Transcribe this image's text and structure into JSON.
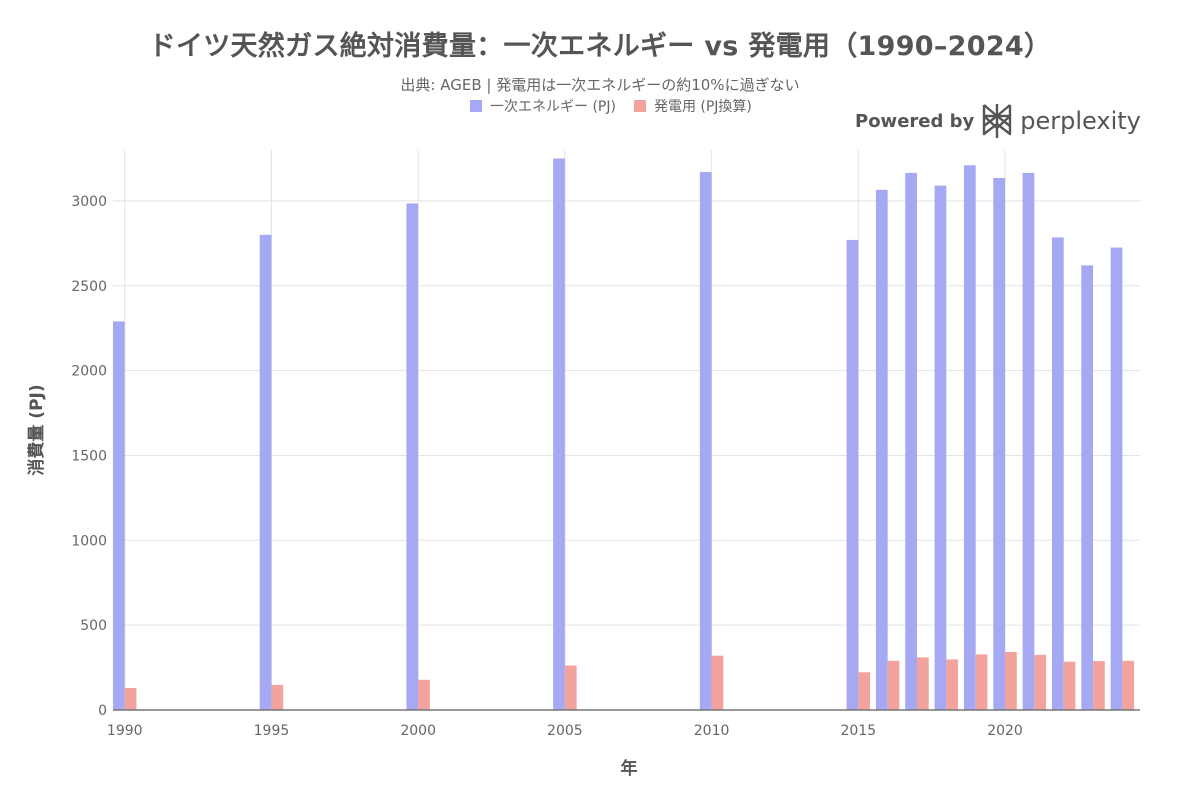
{
  "title": "ドイツ天然ガス絶対消費量：一次エネルギー vs 発電用（1990–2024）",
  "subtitle": "出典: AGEB | 発電用は一次エネルギーの約10%に過ぎない",
  "branding": {
    "label": "Powered by",
    "name": "perplexity"
  },
  "colors": {
    "primary": "#A5A8F2",
    "power": "#F2A39D",
    "grid": "#e3e3e3",
    "axis": "#777777"
  },
  "chart_data": {
    "type": "bar",
    "xlabel": "年",
    "ylabel": "消費量 (PJ)",
    "ylim": [
      0,
      3300
    ],
    "y_ticks": [
      0,
      500,
      1000,
      1500,
      2000,
      2500,
      3000
    ],
    "x_ticks": [
      1990,
      1995,
      2000,
      2005,
      2010,
      2015,
      2020
    ],
    "x_range": [
      1989.6,
      2024.6
    ],
    "legend_position": "top",
    "series": [
      {
        "name": "一次エネルギー (PJ)",
        "x": [
          1990,
          1995,
          2000,
          2005,
          2010,
          2015,
          2016,
          2017,
          2018,
          2019,
          2020,
          2021,
          2022,
          2023,
          2024
        ],
        "values": [
          2290,
          2800,
          2985,
          3250,
          3170,
          2770,
          3065,
          3165,
          3090,
          3210,
          3135,
          3165,
          2785,
          2620,
          2725
        ]
      },
      {
        "name": "発電用 (PJ換算)",
        "x": [
          1990,
          1995,
          2000,
          2005,
          2010,
          2015,
          2016,
          2017,
          2018,
          2019,
          2020,
          2021,
          2022,
          2023,
          2024
        ],
        "values": [
          130,
          148,
          178,
          262,
          320,
          222,
          290,
          310,
          298,
          328,
          342,
          325,
          285,
          288,
          290
        ]
      }
    ]
  }
}
